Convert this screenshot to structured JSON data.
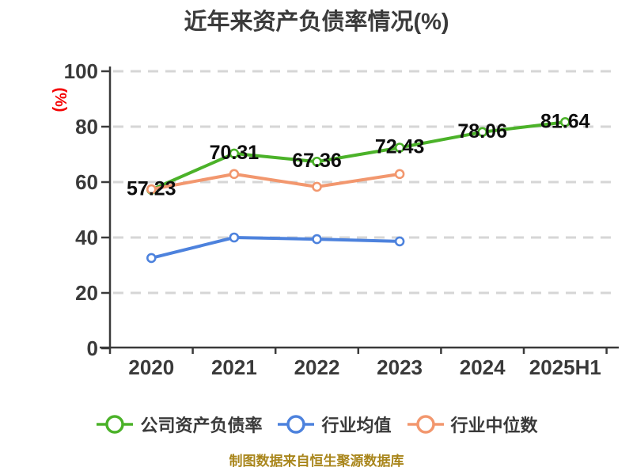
{
  "title": "近年来资产负债率情况(%)",
  "footer_note": "制图数据来自恒生聚源数据库",
  "colors": {
    "company_line": "#4bb229",
    "industry_avg_line": "#4d82dd",
    "industry_median_line": "#f2976e",
    "grid": "#d6d6d6",
    "axis": "#3a3a3a",
    "tick_text": "#3a3a3a",
    "data_label_text": "#0d0d0d",
    "y_axis_unit_text": "#f40000",
    "title_text": "#3b3b3b",
    "footer_text": "#a9861c",
    "marker_fill": "#ffffff"
  },
  "chart_data": {
    "type": "line",
    "title": "近年来资产负债率情况(%)",
    "xlabel": "",
    "ylabel": "(%)",
    "categories": [
      "2020",
      "2021",
      "2022",
      "2023",
      "2024",
      "2025H1"
    ],
    "series": [
      {
        "key": "company",
        "name": "公司资产负债率",
        "color": "#4bb229",
        "values": [
          57.23,
          70.31,
          67.36,
          72.43,
          78.06,
          81.64
        ],
        "labels": [
          "57.23",
          "70.31",
          "67.36",
          "72.43",
          "78.06",
          "81.64"
        ],
        "show_labels": true
      },
      {
        "key": "industry-average",
        "name": "行业均值",
        "color": "#4d82dd",
        "values": [
          32.6,
          40.0,
          39.4,
          38.6
        ],
        "labels": [],
        "show_labels": false
      },
      {
        "key": "industry-median",
        "name": "行业中位数",
        "color": "#f2976e",
        "values": [
          57.4,
          62.9,
          58.3,
          62.9
        ],
        "labels": [],
        "show_labels": false
      }
    ],
    "ylim": [
      0,
      100
    ],
    "yticks": [
      0,
      20,
      40,
      60,
      80,
      100
    ],
    "grid": "horizontal-dashed",
    "legend_position": "bottom"
  }
}
